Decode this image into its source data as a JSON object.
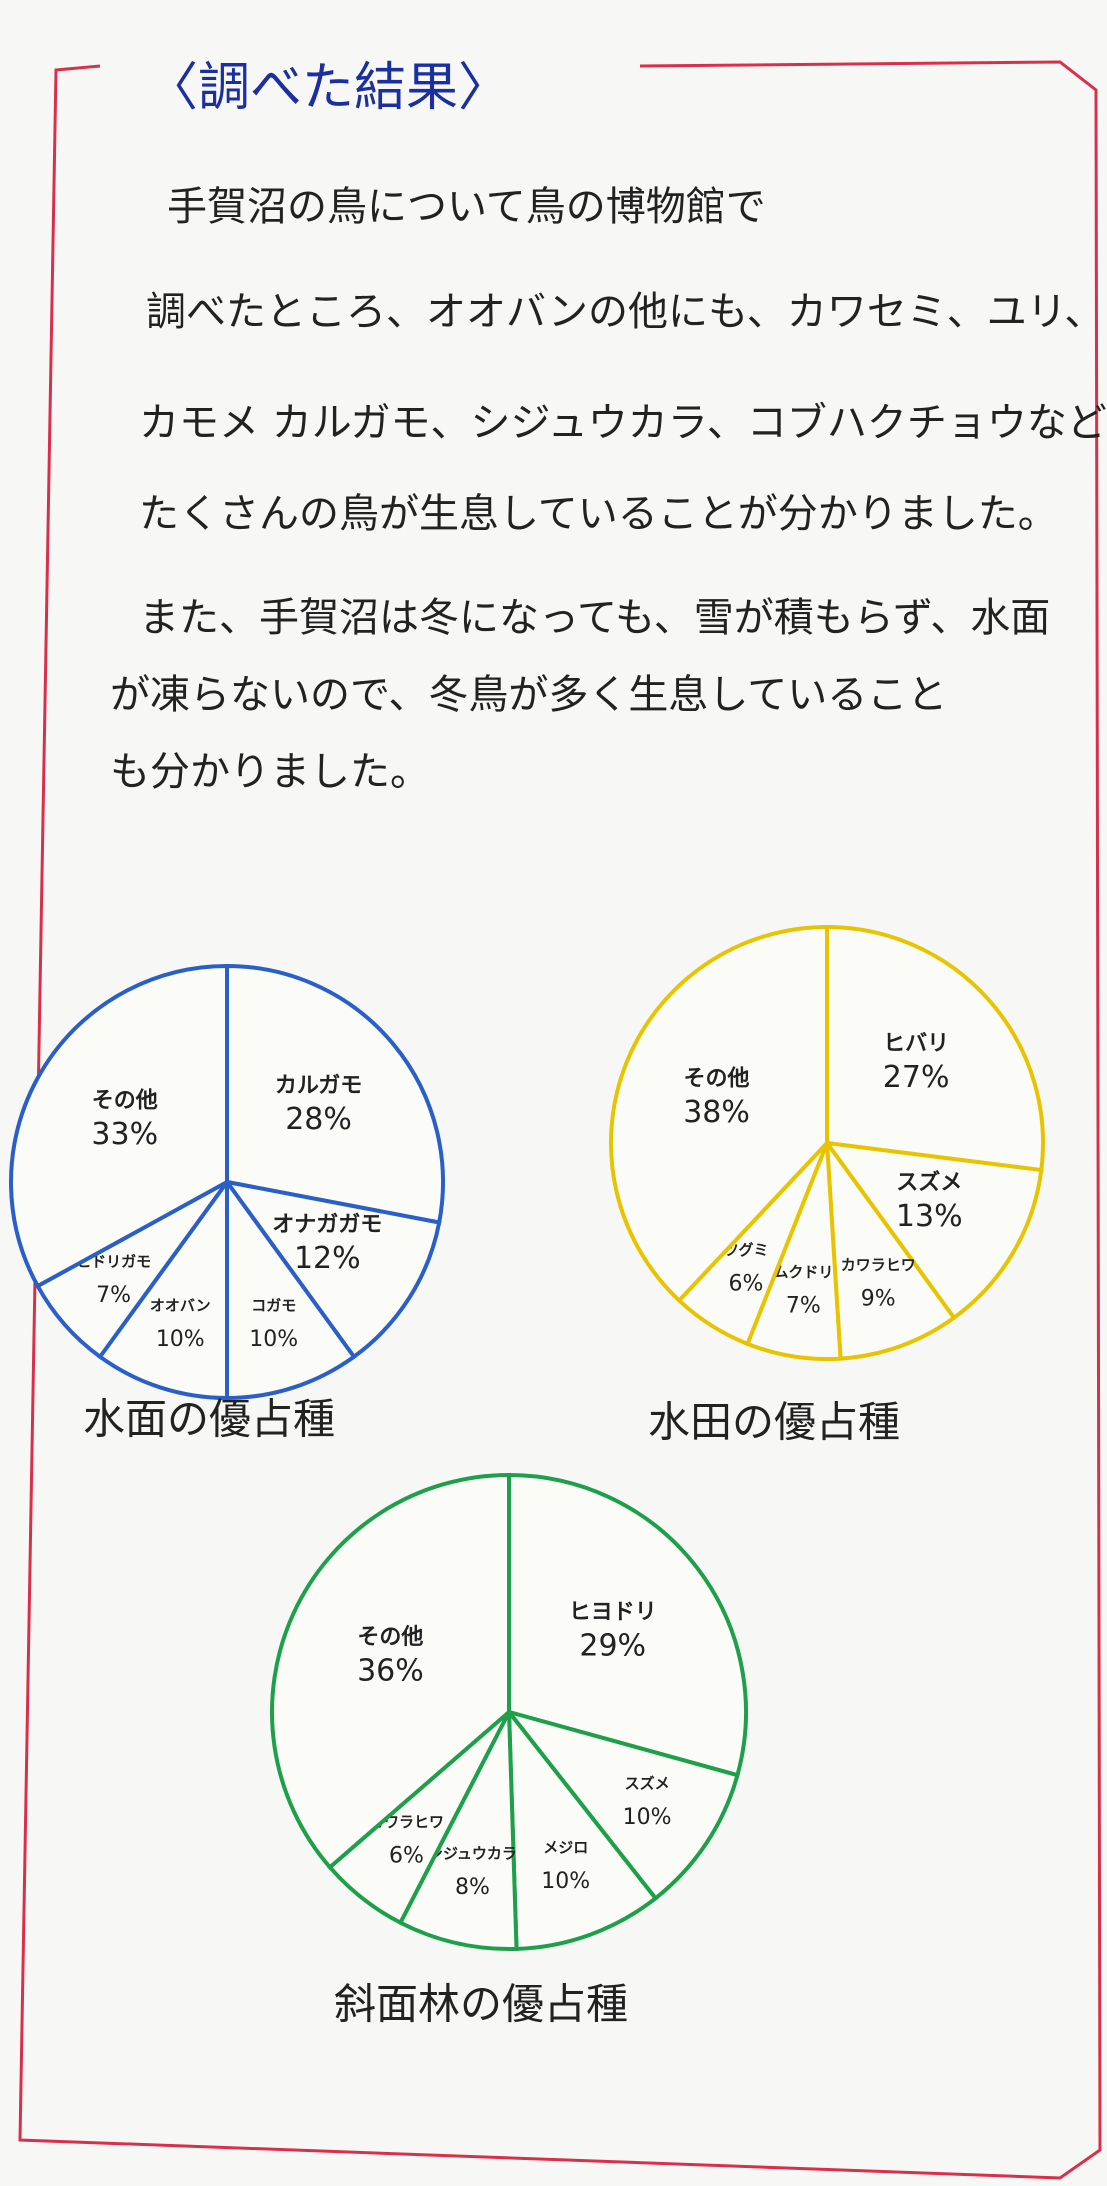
{
  "title": "〈調べた結果〉",
  "paragraph": [
    "手賀沼の鳥について鳥の博物館で",
    "調べたところ、オオバンの他にも、カワセミ、ユリ、",
    "カモメ カルガモ、シジュウカラ、コブハクチョウなど、",
    "たくさんの鳥が生息していることが分かりました。",
    "また、手賀沼は冬になっても、雪が積もらず、水面",
    "が凍らないので、冬鳥が多く生息していること",
    "も分かりました。"
  ],
  "chart_data": [
    {
      "type": "pie",
      "title": "水面の優占種",
      "color": "#2b5fc8",
      "categories": [
        "カルガモ",
        "オナガガモ",
        "コガモ",
        "オオバン",
        "ヒドリガモ",
        "その他"
      ],
      "values": [
        28,
        12,
        10,
        10,
        7,
        33
      ],
      "value_labels": [
        "28%",
        "12%",
        "10%",
        "10%",
        "7%",
        "33%"
      ]
    },
    {
      "type": "pie",
      "title": "水田の優占種",
      "color": "#e8c400",
      "categories": [
        "ヒバリ",
        "スズメ",
        "カワラヒワ",
        "ムクドリ",
        "ツグミ",
        "その他"
      ],
      "values": [
        27,
        13,
        9,
        7,
        6,
        38
      ],
      "value_labels": [
        "27%",
        "13%",
        "9%",
        "7%",
        "6%",
        "38%"
      ]
    },
    {
      "type": "pie",
      "title": "斜面林の優占種",
      "color": "#1ea04a",
      "categories": [
        "ヒヨドリ",
        "スズメ",
        "メジロ",
        "シジュウカラ",
        "カワラヒワ",
        "その他"
      ],
      "values": [
        29,
        10,
        10,
        8,
        6,
        36
      ],
      "value_labels": [
        "29%",
        "10%",
        "10%",
        "8%",
        "6%",
        "36%"
      ]
    }
  ]
}
